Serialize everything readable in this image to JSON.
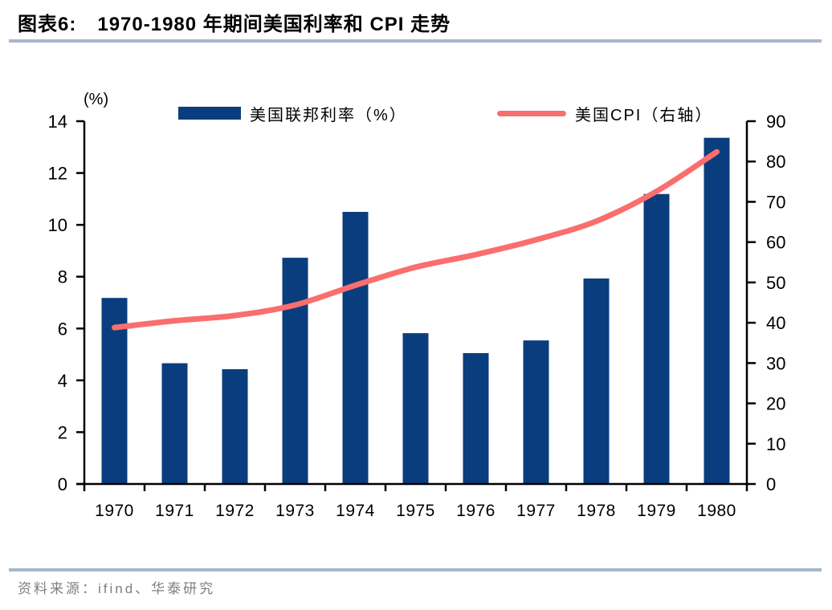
{
  "header": {
    "title_prefix": "图表6:",
    "title_text": "1970-1980 年期间美国利率和 CPI 走势"
  },
  "chart_data": {
    "type": "bar",
    "combo": "bar+line",
    "categories": [
      "1970",
      "1971",
      "1972",
      "1973",
      "1974",
      "1975",
      "1976",
      "1977",
      "1978",
      "1979",
      "1980"
    ],
    "series": [
      {
        "name": "美国联邦利率（%）",
        "type": "bar",
        "axis": "left",
        "values": [
          7.18,
          4.66,
          4.43,
          8.73,
          10.5,
          5.82,
          5.05,
          5.54,
          7.93,
          11.19,
          13.36
        ]
      },
      {
        "name": "美国CPI（右轴）",
        "type": "line",
        "axis": "right",
        "values": [
          38.8,
          40.5,
          41.8,
          44.4,
          49.3,
          53.8,
          56.9,
          60.6,
          65.2,
          72.6,
          82.4
        ]
      }
    ],
    "left_axis": {
      "label": "(%)",
      "min": 0,
      "max": 14,
      "step": 2,
      "tick_labels": [
        "0",
        "2",
        "4",
        "6",
        "8",
        "10",
        "12",
        "14"
      ]
    },
    "right_axis": {
      "min": 0,
      "max": 90,
      "step": 10,
      "tick_labels": [
        "0",
        "10",
        "20",
        "30",
        "40",
        "50",
        "60",
        "70",
        "80",
        "90"
      ]
    },
    "legend_position": "top",
    "grid": false
  },
  "colors": {
    "bar": "#0a3d7d",
    "line": "#fa6e6e",
    "axis": "#000000",
    "divider": "#a6b7cb",
    "source_text": "#7f7f7f"
  },
  "footer": {
    "source": "资料来源：ifind、华泰研究"
  }
}
